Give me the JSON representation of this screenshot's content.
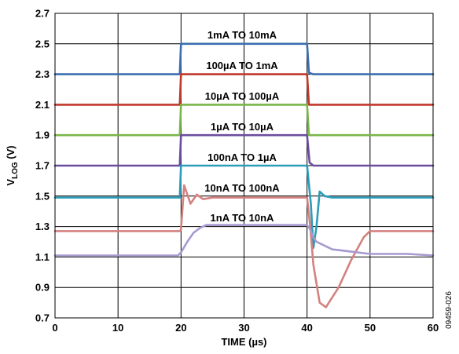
{
  "chart_data": {
    "type": "line",
    "xlabel": "TIME (µs)",
    "ylabel": {
      "main": "V",
      "sub": "LOG",
      "unit": " (V)"
    },
    "xlim": [
      0,
      60
    ],
    "ylim": [
      0.7,
      2.7
    ],
    "xticks": [
      0,
      10,
      20,
      30,
      40,
      50,
      60
    ],
    "yticks": [
      0.7,
      0.9,
      1.1,
      1.3,
      1.5,
      1.7,
      1.9,
      2.1,
      2.3,
      2.5,
      2.7
    ],
    "ytick_labels": [
      "0.7",
      "0.9",
      "1.1",
      "1.3",
      "1.5",
      "1.7",
      "1.9",
      "2.1",
      "2.3",
      "2.5",
      "2.7"
    ],
    "grid": true,
    "figure_id": "09459-026",
    "series": [
      {
        "label": "1mA TO 10mA",
        "color": "#3b6fb1",
        "x": [
          0,
          19.8,
          20.0,
          40.0,
          40.3,
          41.0,
          60
        ],
        "y": [
          2.3,
          2.3,
          2.5,
          2.5,
          2.31,
          2.3,
          2.3
        ]
      },
      {
        "label": "100µA TO 1mA",
        "color": "#c0392b",
        "x": [
          0,
          19.8,
          20.0,
          40.0,
          40.3,
          60
        ],
        "y": [
          2.1,
          2.1,
          2.3,
          2.3,
          2.1,
          2.1
        ]
      },
      {
        "label": "10µA TO 100µA",
        "color": "#7ab648",
        "x": [
          0,
          19.8,
          20.0,
          40.0,
          40.3,
          60
        ],
        "y": [
          1.9,
          1.9,
          2.1,
          2.1,
          1.9,
          1.9
        ]
      },
      {
        "label": "1µA TO 10µA",
        "color": "#6a4c9c",
        "x": [
          0,
          19.8,
          20.0,
          40.0,
          40.4,
          41.0,
          60
        ],
        "y": [
          1.7,
          1.7,
          1.9,
          1.9,
          1.72,
          1.7,
          1.7
        ]
      },
      {
        "label": "100nA TO 1µA",
        "color": "#2c9cb8",
        "x": [
          0,
          19.8,
          20.0,
          40.0,
          40.6,
          41.0,
          41.5,
          42.0,
          42.8,
          44.0,
          45.0,
          60
        ],
        "y": [
          1.49,
          1.49,
          1.7,
          1.7,
          1.45,
          1.16,
          1.3,
          1.53,
          1.5,
          1.49,
          1.49,
          1.49
        ]
      },
      {
        "label": "10nA TO 100nA",
        "color": "#d4817f",
        "x": [
          0,
          19.8,
          20.0,
          20.5,
          21.5,
          22.5,
          23.5,
          25.0,
          40.0,
          40.5,
          41.0,
          42.0,
          43.0,
          45.0,
          47.0,
          49.0,
          50.0,
          51.0,
          60
        ],
        "y": [
          1.27,
          1.27,
          1.28,
          1.57,
          1.45,
          1.51,
          1.48,
          1.49,
          1.49,
          1.3,
          1.05,
          0.8,
          0.77,
          0.9,
          1.08,
          1.23,
          1.27,
          1.27,
          1.27
        ]
      },
      {
        "label": "1nA TO 10nA",
        "color": "#a79ad0",
        "x": [
          0,
          19.5,
          20.0,
          21.0,
          22.0,
          23.0,
          24.0,
          40.0,
          40.5,
          41.0,
          41.5,
          42.0,
          43.0,
          44.0,
          46.0,
          48.0,
          50.0,
          53.0,
          56.0,
          60
        ],
        "y": [
          1.11,
          1.11,
          1.13,
          1.2,
          1.26,
          1.29,
          1.31,
          1.31,
          1.28,
          1.23,
          1.2,
          1.19,
          1.17,
          1.15,
          1.14,
          1.13,
          1.12,
          1.12,
          1.12,
          1.11
        ]
      }
    ],
    "annotations": [
      {
        "text": "1mA TO 10mA"
      },
      {
        "text": "100µA TO 1mA"
      },
      {
        "text": "10µA TO 100µA"
      },
      {
        "text": "1µA TO 10µA"
      },
      {
        "text": "100nA TO 1µA"
      },
      {
        "text": "10nA TO 100nA"
      },
      {
        "text": "1nA TO 10nA"
      }
    ]
  }
}
